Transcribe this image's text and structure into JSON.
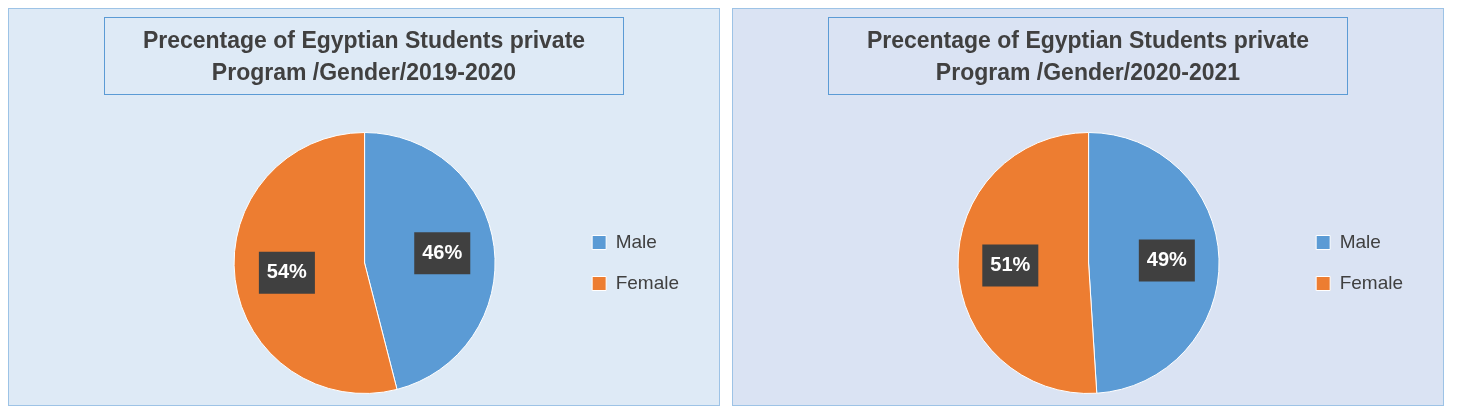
{
  "chart_data": [
    {
      "type": "pie",
      "title": "Precentage of  Egyptian Students private Program /Gender/2019-2020",
      "categories": [
        "Male",
        "Female"
      ],
      "values": [
        46,
        54
      ],
      "colors": [
        "#5b9bd5",
        "#ed7d31"
      ],
      "value_labels": [
        "46%",
        "54%"
      ],
      "legend": "right"
    },
    {
      "type": "pie",
      "title": "Precentage of  Egyptian Students private Program /Gender/2020-2021",
      "categories": [
        "Male",
        "Female"
      ],
      "values": [
        49,
        51
      ],
      "colors": [
        "#5b9bd5",
        "#ed7d31"
      ],
      "value_labels": [
        "49%",
        "51%"
      ],
      "legend": "right"
    }
  ]
}
